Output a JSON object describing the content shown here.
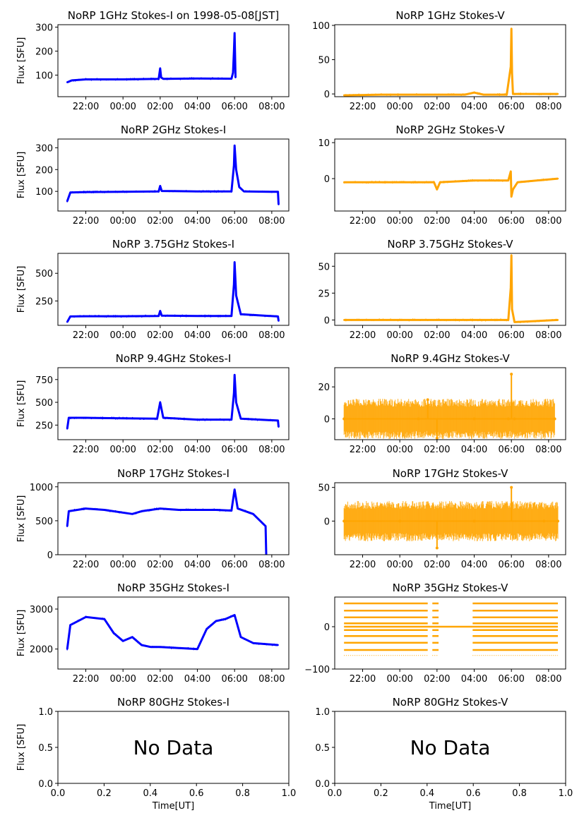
{
  "figure": {
    "ylabel": "Flux [SFU]",
    "xlabel": "Time[UT]",
    "no_data_text": "No Data",
    "colors": {
      "stokes_i": "#0000ff",
      "stokes_v": "#ffa500",
      "axes": "#000000"
    }
  },
  "chart_data": [
    {
      "type": "line",
      "panel": "1GHz-I",
      "title": "NoRP 1GHz Stokes-I on 1998-05-08[JST]",
      "ylabel": "Flux [SFU]",
      "xlim": [
        "20:30",
        "08:55"
      ],
      "ylim": [
        10,
        310
      ],
      "xticks": [
        "22:00",
        "00:00",
        "02:00",
        "04:00",
        "06:00",
        "08:00"
      ],
      "yticks": [
        100,
        200,
        300
      ],
      "series": [
        {
          "color": "#0000ff",
          "x": [
            "21:00",
            "21:15",
            "22:00",
            "00:00",
            "01:55",
            "02:00",
            "02:03",
            "02:10",
            "04:00",
            "05:50",
            "05:55",
            "05:58",
            "06:00",
            "06:02",
            "06:03"
          ],
          "y": [
            70,
            78,
            82,
            82,
            84,
            128,
            90,
            84,
            86,
            85,
            110,
            200,
            275,
            150,
            90
          ]
        }
      ]
    },
    {
      "type": "line",
      "panel": "1GHz-V",
      "title": "NoRP 1GHz Stokes-V",
      "xlim": [
        "20:30",
        "08:55"
      ],
      "ylim": [
        -4,
        101
      ],
      "xticks": [
        "22:00",
        "00:00",
        "02:00",
        "04:00",
        "06:00",
        "08:00"
      ],
      "yticks": [
        0,
        50,
        100
      ],
      "series": [
        {
          "color": "#ffa500",
          "x": [
            "21:00",
            "23:00",
            "02:00",
            "03:30",
            "04:00",
            "04:30",
            "05:45",
            "05:58",
            "06:00",
            "06:02",
            "06:05",
            "08:30"
          ],
          "y": [
            -2,
            -1,
            -1,
            -1,
            2,
            -1,
            -1,
            40,
            95,
            30,
            0,
            0
          ]
        }
      ]
    },
    {
      "type": "line",
      "panel": "2GHz-I",
      "title": "NoRP 2GHz Stokes-I",
      "ylabel": "Flux [SFU]",
      "xlim": [
        "20:30",
        "08:55"
      ],
      "ylim": [
        10,
        340
      ],
      "xticks": [
        "22:00",
        "00:00",
        "02:00",
        "04:00",
        "06:00",
        "08:00"
      ],
      "yticks": [
        100,
        200,
        300
      ],
      "series": [
        {
          "color": "#0000ff",
          "x": [
            "21:00",
            "21:10",
            "22:00",
            "00:00",
            "01:55",
            "02:00",
            "02:05",
            "04:00",
            "05:50",
            "05:58",
            "06:00",
            "06:05",
            "06:15",
            "06:30",
            "08:00",
            "08:20",
            "08:22"
          ],
          "y": [
            55,
            95,
            97,
            98,
            100,
            125,
            102,
            100,
            100,
            220,
            310,
            200,
            120,
            100,
            98,
            98,
            40
          ]
        }
      ]
    },
    {
      "type": "line",
      "panel": "2GHz-V",
      "title": "NoRP 2GHz Stokes-V",
      "xlim": [
        "20:30",
        "08:55"
      ],
      "ylim": [
        -9,
        11
      ],
      "xticks": [
        "22:00",
        "00:00",
        "02:00",
        "04:00",
        "06:00",
        "08:00"
      ],
      "yticks": [
        0,
        10
      ],
      "series": [
        {
          "color": "#ffa500",
          "x": [
            "21:00",
            "23:00",
            "01:50",
            "02:00",
            "02:10",
            "04:00",
            "05:50",
            "05:58",
            "06:00",
            "06:05",
            "06:20",
            "08:30"
          ],
          "y": [
            -1,
            -1,
            -1,
            -3,
            -1,
            -0.5,
            -0.5,
            2,
            -5,
            -3,
            -1,
            0
          ]
        }
      ]
    },
    {
      "type": "line",
      "panel": "3.75GHz-I",
      "title": "NoRP 3.75GHz Stokes-I",
      "ylabel": "Flux [SFU]",
      "xlim": [
        "20:30",
        "08:55"
      ],
      "ylim": [
        30,
        680
      ],
      "xticks": [
        "22:00",
        "00:00",
        "02:00",
        "04:00",
        "06:00",
        "08:00"
      ],
      "yticks": [
        250,
        500
      ],
      "series": [
        {
          "color": "#0000ff",
          "x": [
            "21:00",
            "21:10",
            "22:00",
            "00:00",
            "01:55",
            "02:00",
            "02:05",
            "04:00",
            "05:50",
            "05:58",
            "06:00",
            "06:05",
            "06:20",
            "08:20",
            "08:22"
          ],
          "y": [
            60,
            110,
            112,
            112,
            115,
            160,
            118,
            115,
            115,
            400,
            600,
            300,
            130,
            110,
            70
          ]
        }
      ]
    },
    {
      "type": "line",
      "panel": "3.75GHz-V",
      "title": "NoRP 3.75GHz Stokes-V",
      "xlim": [
        "20:30",
        "08:55"
      ],
      "ylim": [
        -5,
        62
      ],
      "xticks": [
        "22:00",
        "00:00",
        "02:00",
        "04:00",
        "06:00",
        "08:00"
      ],
      "yticks": [
        0,
        25,
        50
      ],
      "series": [
        {
          "color": "#ffa500",
          "x": [
            "21:00",
            "23:00",
            "02:00",
            "04:00",
            "05:50",
            "05:58",
            "06:00",
            "06:02",
            "06:10",
            "08:30"
          ],
          "y": [
            0,
            0,
            0,
            0,
            0,
            30,
            60,
            10,
            -2,
            0
          ]
        }
      ]
    },
    {
      "type": "line",
      "panel": "9.4GHz-I",
      "title": "NoRP 9.4GHz Stokes-I",
      "ylabel": "Flux [SFU]",
      "xlim": [
        "20:30",
        "08:55"
      ],
      "ylim": [
        90,
        880
      ],
      "xticks": [
        "22:00",
        "00:00",
        "02:00",
        "04:00",
        "06:00",
        "08:00"
      ],
      "yticks": [
        250,
        500,
        750
      ],
      "series": [
        {
          "color": "#0000ff",
          "x": [
            "21:00",
            "21:05",
            "22:00",
            "00:00",
            "01:50",
            "02:00",
            "02:10",
            "04:00",
            "05:50",
            "05:58",
            "06:00",
            "06:05",
            "06:20",
            "08:20",
            "08:22"
          ],
          "y": [
            210,
            330,
            330,
            325,
            320,
            500,
            330,
            310,
            310,
            600,
            800,
            500,
            320,
            300,
            230
          ]
        }
      ]
    },
    {
      "type": "scatter",
      "panel": "9.4GHz-V",
      "title": "NoRP 9.4GHz Stokes-V",
      "xlim": [
        "20:30",
        "08:55"
      ],
      "ylim": [
        -13,
        32
      ],
      "xticks": [
        "22:00",
        "00:00",
        "02:00",
        "04:00",
        "06:00",
        "08:00"
      ],
      "yticks": [
        0,
        20
      ],
      "series": [
        {
          "color": "#ffa500",
          "x": [
            "21:00",
            "01:00",
            "01:30",
            "02:00",
            "04:00",
            "05:50",
            "06:00",
            "06:10",
            "08:20"
          ],
          "y": [
            0,
            0,
            12,
            -12,
            0,
            0,
            28,
            0,
            0
          ]
        }
      ]
    },
    {
      "type": "line",
      "panel": "17GHz-I",
      "title": "NoRP 17GHz Stokes-I",
      "ylabel": "Flux [SFU]",
      "xlim": [
        "20:30",
        "08:55"
      ],
      "ylim": [
        0,
        1060
      ],
      "xticks": [
        "22:00",
        "00:00",
        "02:00",
        "04:00",
        "06:00",
        "08:00"
      ],
      "yticks": [
        0,
        500,
        1000
      ],
      "series": [
        {
          "color": "#0000ff",
          "x": [
            "21:00",
            "21:05",
            "22:00",
            "23:00",
            "00:30",
            "01:00",
            "02:00",
            "03:00",
            "04:00",
            "05:00",
            "05:50",
            "06:00",
            "06:10",
            "07:00",
            "07:40",
            "07:42"
          ],
          "y": [
            420,
            640,
            680,
            660,
            600,
            640,
            680,
            660,
            660,
            660,
            650,
            960,
            680,
            600,
            420,
            0
          ]
        }
      ]
    },
    {
      "type": "scatter",
      "panel": "17GHz-V",
      "title": "NoRP 17GHz Stokes-V",
      "xlim": [
        "20:30",
        "08:55"
      ],
      "ylim": [
        -50,
        57
      ],
      "xticks": [
        "22:00",
        "00:00",
        "02:00",
        "04:00",
        "06:00",
        "08:00"
      ],
      "yticks": [
        0,
        50
      ],
      "series": [
        {
          "color": "#ffa500",
          "x": [
            "21:00",
            "00:00",
            "02:00",
            "04:00",
            "06:00",
            "07:45",
            "08:30"
          ],
          "y": [
            0,
            0,
            -40,
            0,
            50,
            0,
            0
          ]
        }
      ]
    },
    {
      "type": "line",
      "panel": "35GHz-I",
      "title": "NoRP 35GHz Stokes-I",
      "ylabel": "Flux [SFU]",
      "xlim": [
        "20:30",
        "08:55"
      ],
      "ylim": [
        1500,
        3300
      ],
      "xticks": [
        "22:00",
        "00:00",
        "02:00",
        "04:00",
        "06:00",
        "08:00"
      ],
      "yticks": [
        2000,
        3000
      ],
      "series": [
        {
          "color": "#0000ff",
          "x": [
            "21:00",
            "21:10",
            "22:00",
            "23:00",
            "23:30",
            "00:00",
            "00:30",
            "01:00",
            "01:30",
            "02:00",
            "04:00",
            "04:30",
            "05:00",
            "05:30",
            "06:00",
            "06:20",
            "07:00",
            "08:20"
          ],
          "y": [
            2000,
            2600,
            2800,
            2750,
            2400,
            2200,
            2300,
            2100,
            2050,
            2050,
            2000,
            2500,
            2700,
            2750,
            2850,
            2300,
            2150,
            2100
          ]
        }
      ]
    },
    {
      "type": "scatter",
      "panel": "35GHz-V",
      "title": "NoRP 35GHz Stokes-V",
      "xlim": [
        "20:30",
        "08:55"
      ],
      "ylim": [
        -100,
        70
      ],
      "xticks": [
        "22:00",
        "00:00",
        "02:00",
        "04:00",
        "06:00",
        "08:00"
      ],
      "yticks": [
        -100,
        0
      ],
      "series": [
        {
          "color": "#ffa500",
          "levels": [
            55,
            38,
            22,
            8,
            -8,
            -22,
            -38,
            -55,
            -68
          ]
        }
      ]
    },
    {
      "type": "line",
      "panel": "80GHz-I",
      "title": "NoRP 80GHz Stokes-I",
      "ylabel": "Flux [SFU]",
      "xlabel": "Time[UT]",
      "xlim": [
        0.0,
        1.0
      ],
      "ylim": [
        0.0,
        1.0
      ],
      "xticks": [
        "0.0",
        "0.2",
        "0.4",
        "0.6",
        "0.8",
        "1.0"
      ],
      "yticks": [
        "0.0",
        "0.5",
        "1.0"
      ],
      "annotation": "No Data",
      "series": []
    },
    {
      "type": "line",
      "panel": "80GHz-V",
      "title": "NoRP 80GHz Stokes-V",
      "xlabel": "Time[UT]",
      "xlim": [
        0.0,
        1.0
      ],
      "ylim": [
        0.0,
        1.0
      ],
      "xticks": [
        "0.0",
        "0.2",
        "0.4",
        "0.6",
        "0.8",
        "1.0"
      ],
      "yticks": [
        "0.0",
        "0.5",
        "1.0"
      ],
      "annotation": "No Data",
      "series": []
    }
  ]
}
